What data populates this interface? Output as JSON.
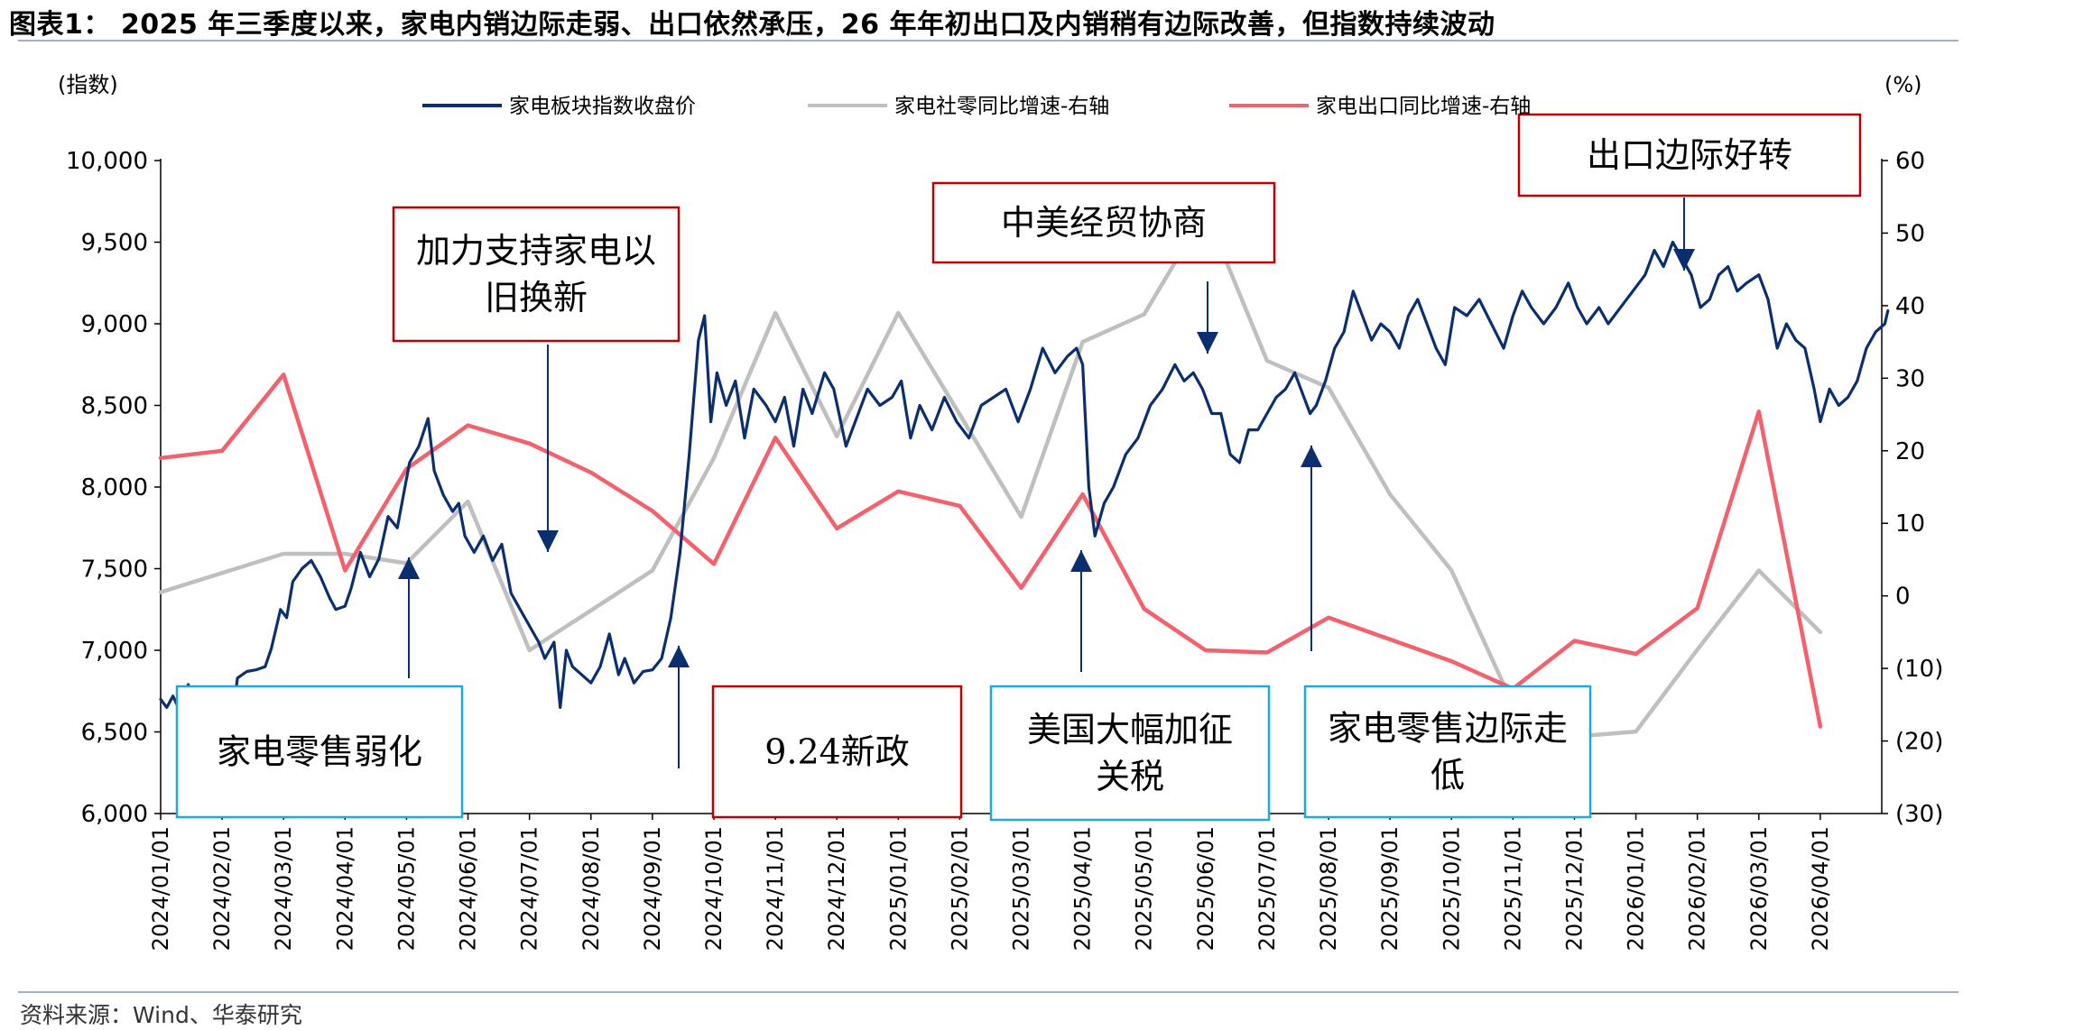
{
  "page": {
    "title": "图表1： 2025 年三季度以来，家电内销边际走弱、出口依然承压，26 年年初出口及内销稍有边际改善，但指数持续波动",
    "source": "资料来源：Wind、华泰研究"
  },
  "colors": {
    "index_line": "#0b2f6e",
    "retail_line": "#bfbfbf",
    "export_line": "#f4606c",
    "box_red": "#c00000",
    "box_blue": "#1fa8e0",
    "arrow": "#0b2f6e",
    "axis": "#000000"
  },
  "chart_data": {
    "type": "line",
    "left_axis_unit": "(指数)",
    "right_axis_unit": "(%)",
    "ylim_left": [
      6000,
      10000
    ],
    "ylim_right": [
      -30,
      60
    ],
    "left_ticks": [
      {
        "v": 6000,
        "label": "6,000"
      },
      {
        "v": 6500,
        "label": "6,500"
      },
      {
        "v": 7000,
        "label": "7,000"
      },
      {
        "v": 7500,
        "label": "7,500"
      },
      {
        "v": 8000,
        "label": "8,000"
      },
      {
        "v": 8500,
        "label": "8,500"
      },
      {
        "v": 9000,
        "label": "9,000"
      },
      {
        "v": 9500,
        "label": "9,500"
      },
      {
        "v": 10000,
        "label": "10,000"
      }
    ],
    "right_ticks": [
      {
        "v": -30,
        "label": "(30)"
      },
      {
        "v": -20,
        "label": "(20)"
      },
      {
        "v": -10,
        "label": "(10)"
      },
      {
        "v": 0,
        "label": "0"
      },
      {
        "v": 10,
        "label": "10"
      },
      {
        "v": 20,
        "label": "20"
      },
      {
        "v": 30,
        "label": "30"
      },
      {
        "v": 40,
        "label": "40"
      },
      {
        "v": 50,
        "label": "50"
      },
      {
        "v": 60,
        "label": "60"
      }
    ],
    "x_ticks": [
      "2024/01/01",
      "2024/02/01",
      "2024/03/01",
      "2024/04/01",
      "2024/05/01",
      "2024/06/01",
      "2024/07/01",
      "2024/08/01",
      "2024/09/01",
      "2024/10/01",
      "2024/11/01",
      "2024/12/01",
      "2025/01/01",
      "2025/02/01",
      "2025/03/01",
      "2025/04/01",
      "2025/05/01",
      "2025/06/01",
      "2025/07/01",
      "2025/08/01",
      "2025/09/01",
      "2025/10/01",
      "2025/11/01",
      "2025/12/01",
      "2026/01/01",
      "2026/02/01",
      "2026/03/01",
      "2026/04/01"
    ],
    "series": [
      {
        "name": "家电板块指数收盘价",
        "axis": "left",
        "points": [
          [
            0.0,
            6700
          ],
          [
            0.1,
            6650
          ],
          [
            0.2,
            6720
          ],
          [
            0.3,
            6640
          ],
          [
            0.45,
            6790
          ],
          [
            0.6,
            6620
          ],
          [
            0.75,
            6500
          ],
          [
            0.9,
            6610
          ],
          [
            1.05,
            6550
          ],
          [
            1.15,
            6540
          ],
          [
            1.25,
            6830
          ],
          [
            1.4,
            6870
          ],
          [
            1.55,
            6880
          ],
          [
            1.7,
            6900
          ],
          [
            1.8,
            7010
          ],
          [
            1.95,
            7250
          ],
          [
            2.05,
            7200
          ],
          [
            2.15,
            7420
          ],
          [
            2.3,
            7500
          ],
          [
            2.45,
            7550
          ],
          [
            2.6,
            7450
          ],
          [
            2.75,
            7320
          ],
          [
            2.85,
            7250
          ],
          [
            3.0,
            7270
          ],
          [
            3.1,
            7380
          ],
          [
            3.25,
            7600
          ],
          [
            3.4,
            7450
          ],
          [
            3.55,
            7560
          ],
          [
            3.7,
            7820
          ],
          [
            3.85,
            7750
          ],
          [
            3.95,
            7950
          ],
          [
            4.05,
            8150
          ],
          [
            4.2,
            8250
          ],
          [
            4.35,
            8420
          ],
          [
            4.45,
            8100
          ],
          [
            4.6,
            7950
          ],
          [
            4.75,
            7850
          ],
          [
            4.85,
            7900
          ],
          [
            4.95,
            7700
          ],
          [
            5.1,
            7600
          ],
          [
            5.25,
            7700
          ],
          [
            5.4,
            7550
          ],
          [
            5.55,
            7650
          ],
          [
            5.7,
            7350
          ],
          [
            5.85,
            7250
          ],
          [
            6.0,
            7150
          ],
          [
            6.15,
            7050
          ],
          [
            6.25,
            6950
          ],
          [
            6.4,
            7050
          ],
          [
            6.5,
            6650
          ],
          [
            6.6,
            7000
          ],
          [
            6.7,
            6900
          ],
          [
            6.85,
            6850
          ],
          [
            7.0,
            6800
          ],
          [
            7.15,
            6900
          ],
          [
            7.3,
            7100
          ],
          [
            7.45,
            6850
          ],
          [
            7.55,
            6950
          ],
          [
            7.7,
            6800
          ],
          [
            7.85,
            6870
          ],
          [
            8.0,
            6880
          ],
          [
            8.15,
            6950
          ],
          [
            8.3,
            7200
          ],
          [
            8.45,
            7600
          ],
          [
            8.6,
            8200
          ],
          [
            8.75,
            8900
          ],
          [
            8.85,
            9050
          ],
          [
            8.95,
            8400
          ],
          [
            9.05,
            8700
          ],
          [
            9.2,
            8500
          ],
          [
            9.35,
            8650
          ],
          [
            9.5,
            8300
          ],
          [
            9.65,
            8600
          ],
          [
            9.85,
            8500
          ],
          [
            10.0,
            8400
          ],
          [
            10.15,
            8550
          ],
          [
            10.3,
            8250
          ],
          [
            10.45,
            8600
          ],
          [
            10.6,
            8450
          ],
          [
            10.8,
            8700
          ],
          [
            10.95,
            8600
          ],
          [
            11.15,
            8250
          ],
          [
            11.3,
            8400
          ],
          [
            11.5,
            8600
          ],
          [
            11.7,
            8500
          ],
          [
            11.9,
            8550
          ],
          [
            12.05,
            8650
          ],
          [
            12.2,
            8300
          ],
          [
            12.35,
            8500
          ],
          [
            12.55,
            8350
          ],
          [
            12.75,
            8550
          ],
          [
            12.95,
            8400
          ],
          [
            13.15,
            8300
          ],
          [
            13.35,
            8500
          ],
          [
            13.55,
            8550
          ],
          [
            13.75,
            8600
          ],
          [
            13.95,
            8400
          ],
          [
            14.15,
            8600
          ],
          [
            14.35,
            8850
          ],
          [
            14.55,
            8700
          ],
          [
            14.75,
            8800
          ],
          [
            14.9,
            8850
          ],
          [
            15.0,
            8750
          ],
          [
            15.1,
            8000
          ],
          [
            15.2,
            7700
          ],
          [
            15.35,
            7900
          ],
          [
            15.5,
            8000
          ],
          [
            15.7,
            8200
          ],
          [
            15.9,
            8300
          ],
          [
            16.1,
            8500
          ],
          [
            16.3,
            8600
          ],
          [
            16.5,
            8750
          ],
          [
            16.65,
            8650
          ],
          [
            16.8,
            8700
          ],
          [
            16.95,
            8600
          ],
          [
            17.1,
            8450
          ],
          [
            17.25,
            8450
          ],
          [
            17.4,
            8200
          ],
          [
            17.55,
            8150
          ],
          [
            17.7,
            8350
          ],
          [
            17.85,
            8350
          ],
          [
            18.0,
            8450
          ],
          [
            18.15,
            8550
          ],
          [
            18.3,
            8600
          ],
          [
            18.45,
            8700
          ],
          [
            18.6,
            8550
          ],
          [
            18.7,
            8450
          ],
          [
            18.8,
            8500
          ],
          [
            18.95,
            8650
          ],
          [
            19.1,
            8850
          ],
          [
            19.25,
            8950
          ],
          [
            19.4,
            9200
          ],
          [
            19.55,
            9050
          ],
          [
            19.7,
            8900
          ],
          [
            19.85,
            9000
          ],
          [
            20.0,
            8950
          ],
          [
            20.15,
            8850
          ],
          [
            20.3,
            9050
          ],
          [
            20.45,
            9150
          ],
          [
            20.6,
            9000
          ],
          [
            20.75,
            8850
          ],
          [
            20.9,
            8750
          ],
          [
            21.05,
            9100
          ],
          [
            21.25,
            9050
          ],
          [
            21.45,
            9150
          ],
          [
            21.65,
            9000
          ],
          [
            21.85,
            8850
          ],
          [
            22.0,
            9050
          ],
          [
            22.15,
            9200
          ],
          [
            22.3,
            9100
          ],
          [
            22.5,
            9000
          ],
          [
            22.7,
            9100
          ],
          [
            22.9,
            9250
          ],
          [
            23.05,
            9100
          ],
          [
            23.2,
            9000
          ],
          [
            23.4,
            9100
          ],
          [
            23.55,
            9000
          ],
          [
            23.75,
            9100
          ],
          [
            23.95,
            9200
          ],
          [
            24.15,
            9300
          ],
          [
            24.3,
            9450
          ],
          [
            24.45,
            9350
          ],
          [
            24.6,
            9500
          ],
          [
            24.75,
            9400
          ],
          [
            24.9,
            9300
          ],
          [
            25.05,
            9100
          ],
          [
            25.2,
            9150
          ],
          [
            25.35,
            9300
          ],
          [
            25.5,
            9350
          ],
          [
            25.65,
            9200
          ],
          [
            25.8,
            9250
          ],
          [
            26.0,
            9300
          ],
          [
            26.15,
            9150
          ],
          [
            26.3,
            8850
          ],
          [
            26.45,
            9000
          ],
          [
            26.6,
            8900
          ],
          [
            26.75,
            8850
          ],
          [
            26.9,
            8600
          ],
          [
            27.0,
            8400
          ],
          [
            27.15,
            8600
          ],
          [
            27.3,
            8500
          ],
          [
            27.45,
            8550
          ],
          [
            27.6,
            8650
          ],
          [
            27.75,
            8850
          ],
          [
            27.9,
            8950
          ],
          [
            28.05,
            9000
          ],
          [
            28.1,
            9080
          ]
        ]
      },
      {
        "name": "家电社零同比增速-右轴",
        "axis": "right",
        "points": [
          [
            0,
            0.5
          ],
          [
            2,
            5.8
          ],
          [
            3,
            5.8
          ],
          [
            4,
            4.5
          ],
          [
            5,
            13
          ],
          [
            6,
            -7.5
          ],
          [
            7,
            -2
          ],
          [
            8,
            3.5
          ],
          [
            9,
            19
          ],
          [
            10,
            39
          ],
          [
            11,
            22
          ],
          [
            12,
            39
          ],
          [
            13,
            25
          ],
          [
            14,
            10.9
          ],
          [
            15,
            35
          ],
          [
            16,
            38.8
          ],
          [
            17,
            53
          ],
          [
            18,
            32.4
          ],
          [
            19,
            28.7
          ],
          [
            20,
            14
          ],
          [
            21,
            3.5
          ],
          [
            22,
            -15
          ],
          [
            23,
            -19.4
          ],
          [
            24,
            -18.7
          ],
          [
            25,
            -7.4
          ],
          [
            26,
            3.5
          ],
          [
            27,
            -5
          ]
        ]
      },
      {
        "name": "家电出口同比增速-右轴",
        "axis": "right",
        "points": [
          [
            0,
            19
          ],
          [
            1,
            20
          ],
          [
            2,
            30.5
          ],
          [
            3,
            3.5
          ],
          [
            4,
            17.5
          ],
          [
            5,
            23.5
          ],
          [
            6,
            21
          ],
          [
            7,
            17
          ],
          [
            8,
            11.7
          ],
          [
            9,
            4.4
          ],
          [
            10,
            21.8
          ],
          [
            11,
            9.3
          ],
          [
            12,
            14.4
          ],
          [
            13,
            12.4
          ],
          [
            14,
            1.1
          ],
          [
            15,
            14
          ],
          [
            16,
            -1.8
          ],
          [
            17,
            -7.5
          ],
          [
            18,
            -7.8
          ],
          [
            19,
            -3
          ],
          [
            20,
            -6
          ],
          [
            21,
            -9
          ],
          [
            22,
            -12.8
          ],
          [
            23,
            -6.2
          ],
          [
            24,
            -8
          ],
          [
            25,
            -1.7
          ],
          [
            26,
            25.4
          ],
          [
            27,
            -18
          ]
        ]
      }
    ],
    "annotations": [
      {
        "id": "retail-weak",
        "lines": [
          "家电零售弱化"
        ],
        "box": "blue",
        "arrow": "up"
      },
      {
        "id": "trade-in",
        "lines": [
          "加力支持家电以",
          "旧换新"
        ],
        "box": "red",
        "arrow": "down"
      },
      {
        "id": "policy-924",
        "lines": [
          "9.24新政"
        ],
        "box": "red",
        "arrow": "up"
      },
      {
        "id": "tariff",
        "lines": [
          "美国大幅加征",
          "关税"
        ],
        "box": "blue",
        "arrow": "up"
      },
      {
        "id": "sino-us-talks",
        "lines": [
          "中美经贸协商"
        ],
        "box": "red",
        "arrow": "down"
      },
      {
        "id": "retail-low",
        "lines": [
          "家电零售边际走",
          "低"
        ],
        "box": "blue",
        "arrow": "up"
      },
      {
        "id": "export-better",
        "lines": [
          "出口边际好转"
        ],
        "box": "red",
        "arrow": "down"
      }
    ]
  }
}
